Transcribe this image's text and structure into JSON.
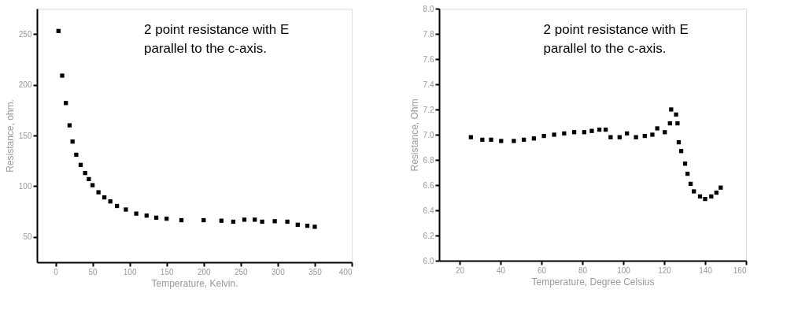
{
  "chart_data": [
    {
      "type": "scatter",
      "xlabel": "Temperature, Kelvin.",
      "ylabel": "Resistance, ohm.",
      "annotations": [
        "2 point resistance with E\nparallel to the c-axis."
      ],
      "xlim": [
        -25,
        400
      ],
      "xticks": [
        0,
        50,
        100,
        150,
        200,
        250,
        300,
        350,
        400
      ],
      "ylim": [
        25,
        275
      ],
      "yticks": [
        50,
        100,
        150,
        200,
        250
      ],
      "grid": false,
      "marker": "square",
      "series": [
        {
          "color": "#000000",
          "x": [
            4,
            9,
            14,
            19,
            23,
            28,
            34,
            40,
            45,
            50,
            58,
            66,
            74,
            83,
            95,
            109,
            123,
            136,
            150,
            170,
            200,
            224,
            240,
            255,
            269,
            279,
            296,
            313,
            327,
            340,
            350
          ],
          "values": [
            253,
            209,
            182,
            160,
            144,
            131,
            121,
            113,
            107,
            101,
            94,
            89,
            85,
            80.5,
            77,
            73,
            71,
            69,
            68,
            66.5,
            66.5,
            66,
            65,
            67,
            67,
            65,
            65.5,
            65,
            62,
            61,
            60
          ]
        }
      ]
    },
    {
      "type": "scatter",
      "xlabel": "Temperature, Degree Celsius",
      "ylabel": "Resistance, Ohm",
      "annotations": [
        "2 point resistance with E\nparallel to the c-axis."
      ],
      "xlim": [
        10,
        160
      ],
      "xticks": [
        20,
        40,
        60,
        80,
        100,
        120,
        140,
        160
      ],
      "ylim": [
        6.0,
        8.0
      ],
      "yticks": [
        {
          "value": 6.0,
          "label": "6.0"
        },
        6.2,
        6.4,
        6.6,
        6.8,
        {
          "value": 7.0,
          "label": "7.0"
        },
        7.2,
        7.4,
        7.6,
        7.8,
        {
          "value": 8.0,
          "label": "8.0"
        }
      ],
      "grid": false,
      "marker": "square",
      "series": [
        {
          "color": "#000000",
          "x": [
            25.5,
            31.1,
            35.4,
            40.3,
            46.5,
            51.4,
            56.3,
            61.2,
            66.2,
            71.1,
            76,
            80.9,
            84.6,
            88.3,
            91.4,
            93.8,
            98.2,
            101.8,
            106.2,
            110.5,
            114.2,
            116.6,
            120.3,
            122.8,
            123.4,
            125.8,
            126.5,
            127.1,
            128.3,
            130.2,
            131.4,
            132.9,
            134.5,
            137.5,
            140,
            143,
            145.5,
            147.6
          ],
          "values": [
            6.98,
            6.96,
            6.96,
            6.95,
            6.95,
            6.96,
            6.97,
            6.99,
            7.0,
            7.01,
            7.02,
            7.02,
            7.03,
            7.04,
            7.04,
            6.98,
            6.98,
            7.01,
            6.98,
            6.99,
            7.0,
            7.05,
            7.02,
            7.09,
            7.2,
            7.16,
            7.09,
            6.94,
            6.87,
            6.77,
            6.69,
            6.61,
            6.55,
            6.51,
            6.49,
            6.51,
            6.54,
            6.58
          ]
        }
      ]
    }
  ]
}
